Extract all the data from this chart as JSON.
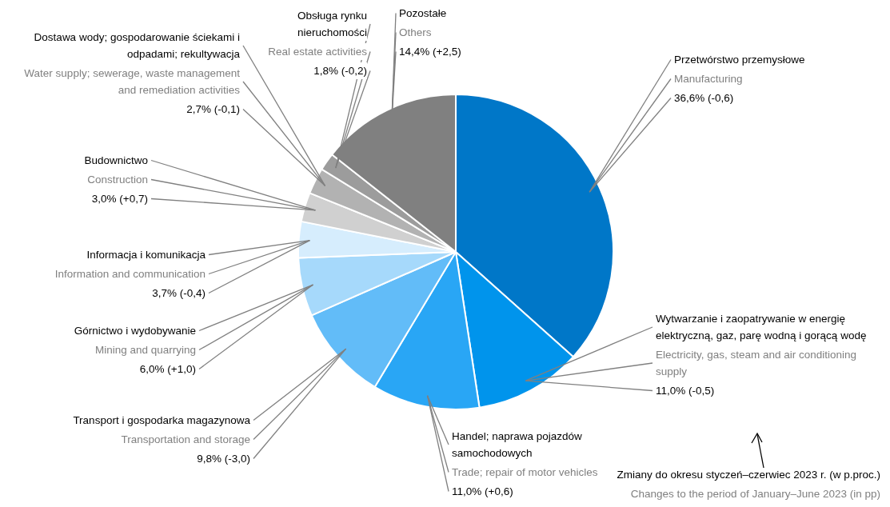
{
  "chart_data": {
    "type": "pie",
    "categories": [
      "Przetwórstwo przemysłowe",
      "Wytwarzanie i zaopatrywanie w energię elektryczną, gaz, parę wodną i gorącą wodę",
      "Handel; naprawa pojazdów samochodowych",
      "Transport i gospodarka magazynowa",
      "Górnictwo i wydobywanie",
      "Informacja i komunikacja",
      "Budownictwo",
      "Dostawa wody; gospodarowanie ściekami i odpadami; rekultywacja",
      "Obsługa rynku nieruchomości",
      "Pozostałe"
    ],
    "values": [
      36.6,
      11.0,
      11.0,
      9.8,
      6.0,
      3.7,
      3.0,
      2.7,
      1.8,
      14.4
    ],
    "colors": [
      "#0077c8",
      "#0094ec",
      "#29a6f5",
      "#62bcf8",
      "#a6d9fb",
      "#d6edfd",
      "#d0d0d0",
      "#b2b2b2",
      "#9c9c9c",
      "#808080"
    ],
    "value_labels": [
      "36,6% (-0,6)",
      "11,0% (-0,5)",
      "11,0% (+0,6)",
      "9,8% (-3,0)",
      "6,0% (+1,0)",
      "3,7% (-0,4)",
      "3,0% (+0,7)",
      "2,7% (-0,1)",
      "1,8% (-0,2)",
      "14,4% (+2,5)"
    ],
    "annotations": [
      "Manufacturing",
      "Electricity, gas, steam and air conditioning supply",
      "Trade; repair of motor vehicles",
      "Transportation and storage",
      "Mining and quarrying",
      "Information and communication",
      "Construction",
      "Water supply; sewerage, waste management and remediation activities",
      "Real estate activities",
      "Others",
      "Zmiany do okresu styczeń–czerwiec 2023 r. (w p.proc.)",
      "Changes to the period of January–June 2023 (in pp)"
    ]
  }
}
